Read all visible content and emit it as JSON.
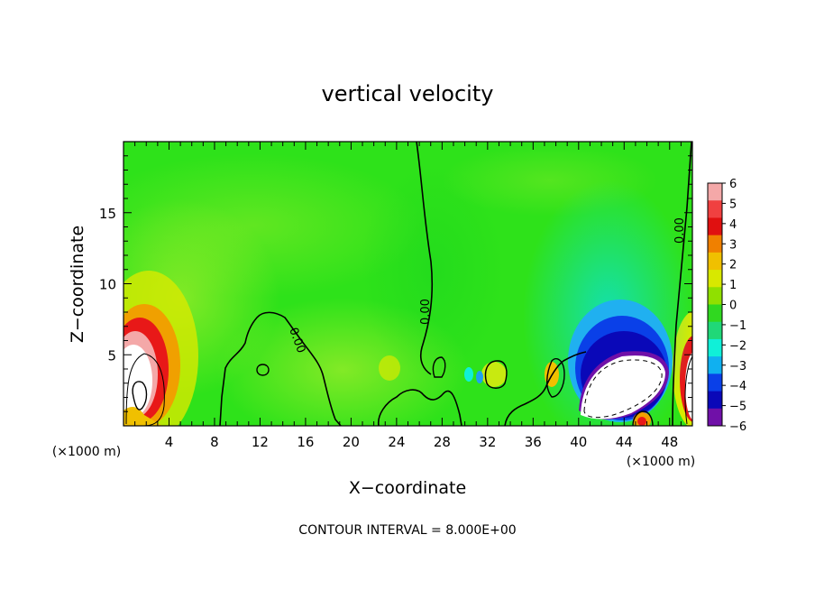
{
  "chart_data": {
    "type": "heatmap",
    "title": "vertical velocity",
    "xlabel": "X−coordinate",
    "ylabel": "Z−coordinate",
    "x_unit_label": "(×1000 m)",
    "z_unit_label": "(×1000 m)",
    "xlim": [
      0,
      50
    ],
    "ylim": [
      0,
      20
    ],
    "x_ticks": [
      4,
      8,
      12,
      16,
      20,
      24,
      28,
      32,
      36,
      40,
      44,
      48
    ],
    "y_ticks": [
      5,
      10,
      15
    ],
    "colorbar": {
      "values": [
        6,
        5,
        4,
        3,
        2,
        1,
        0,
        -1,
        -2,
        -3,
        -4,
        -5,
        -6
      ],
      "labels": [
        "6",
        "5",
        "4",
        "3",
        "2",
        "1",
        "0",
        "−1",
        "−2",
        "−3",
        "−4",
        "−5",
        "−6"
      ],
      "colors": [
        "#f4a8a8",
        "#f04040",
        "#e01010",
        "#f08000",
        "#f0c000",
        "#d8e800",
        "#90e000",
        "#30d820",
        "#20d878",
        "#10f0d8",
        "#10b0f0",
        "#0a40e8",
        "#0a08b8",
        "#7010a8"
      ]
    },
    "contour_labels": [
      "0.00",
      "0.00",
      "0.00"
    ],
    "footer": "CONTOUR INTERVAL = 8.000E+00"
  }
}
